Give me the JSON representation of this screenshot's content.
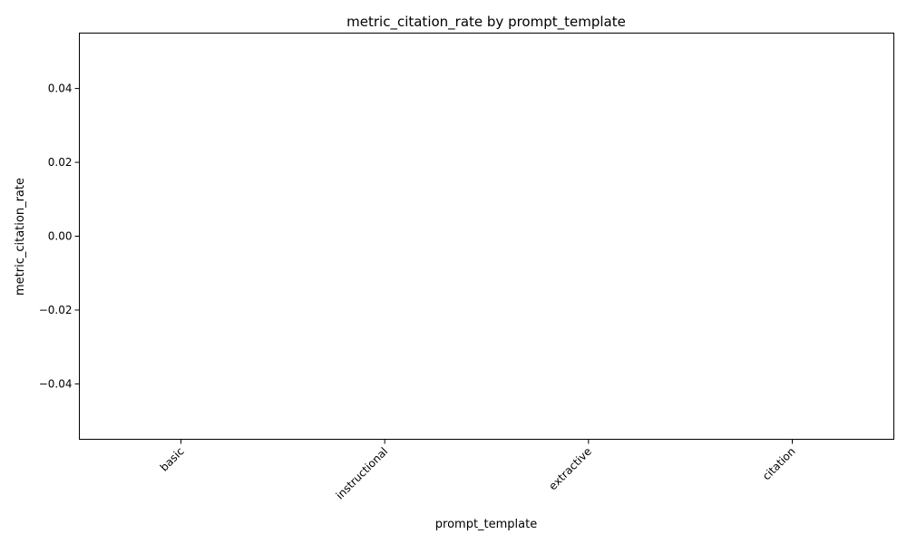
{
  "chart_data": {
    "type": "bar",
    "title": "metric_citation_rate by prompt_template",
    "xlabel": "prompt_template",
    "ylabel": "metric_citation_rate",
    "categories": [
      "basic",
      "instructional",
      "extractive",
      "citation"
    ],
    "values": [
      0,
      0,
      0,
      0
    ],
    "ylim": [
      -0.055,
      0.055
    ],
    "yticks": [
      -0.04,
      -0.02,
      0.0,
      0.02,
      0.04
    ],
    "ytick_labels": [
      "−0.04",
      "−0.02",
      "0.00",
      "0.02",
      "0.04"
    ],
    "grid": false,
    "bar_color": "#1f77b4"
  }
}
